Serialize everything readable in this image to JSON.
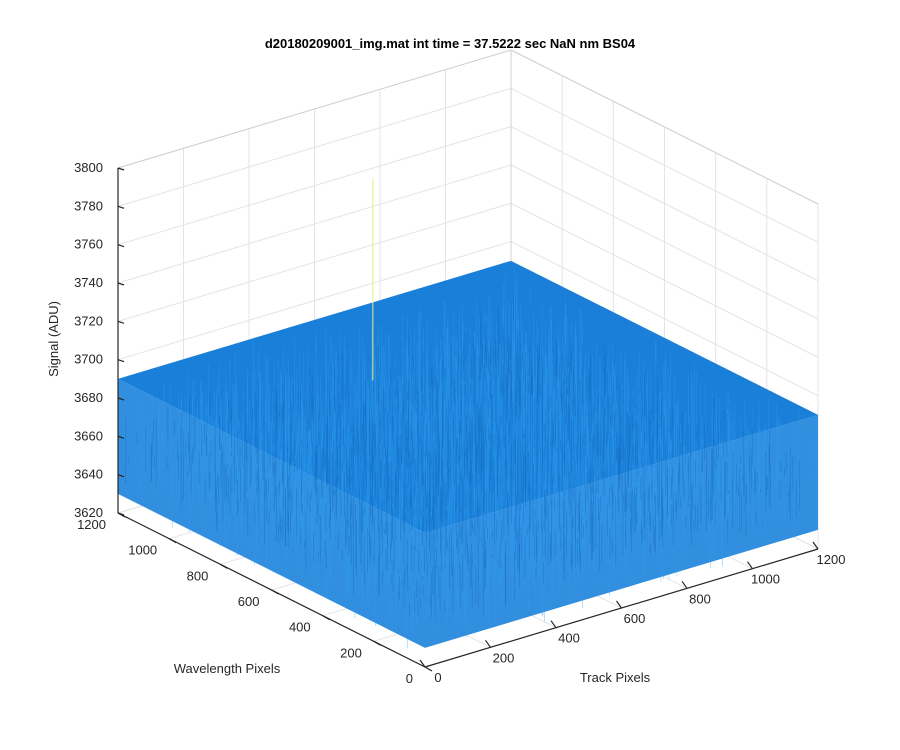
{
  "chart_data": {
    "type": "surface",
    "title": "d20180209001_img.mat int time = 37.5222 sec  NaN nm BS04",
    "xlabel": "Track Pixels",
    "ylabel": "Wavelength Pixels",
    "zlabel": "Signal (ADU)",
    "xlim": [
      0,
      1200
    ],
    "ylim": [
      0,
      1200
    ],
    "zlim": [
      3620,
      3800
    ],
    "x_ticks": [
      "0",
      "200",
      "400",
      "600",
      "800",
      "1000",
      "1200"
    ],
    "y_ticks": [
      "0",
      "200",
      "400",
      "600",
      "800",
      "1000",
      "1200"
    ],
    "z_ticks": [
      "3620",
      "3640",
      "3660",
      "3680",
      "3700",
      "3720",
      "3740",
      "3760",
      "3780",
      "3800"
    ],
    "grid": true,
    "colormap": "parula",
    "surface_color": "#1a7fd8",
    "surface": {
      "x_extent": [
        0,
        1200
      ],
      "y_extent": [
        0,
        1200
      ],
      "mean_signal": 3660,
      "noise_min": 3630,
      "noise_max": 3690,
      "max_spike": 3765
    }
  }
}
